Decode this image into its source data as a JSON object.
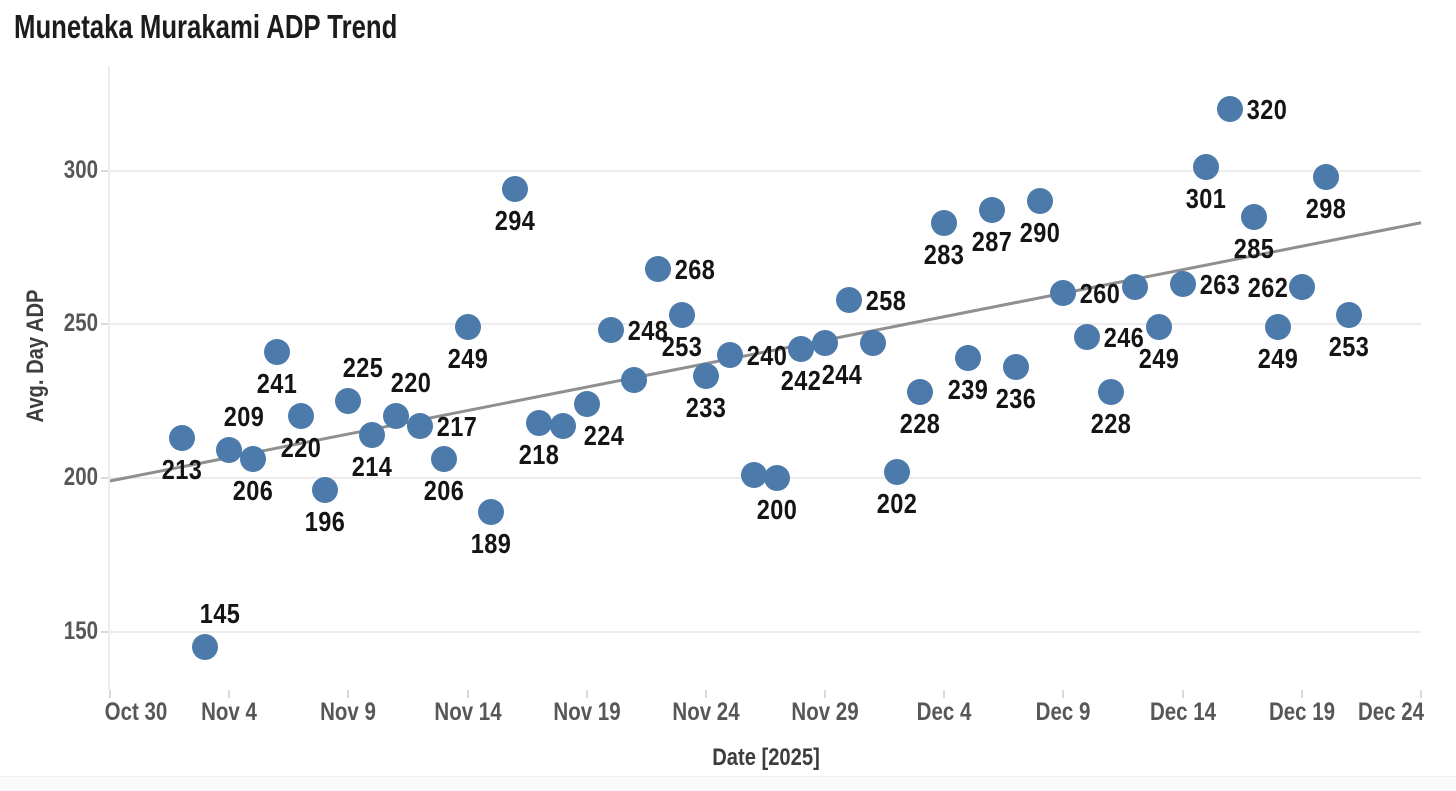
{
  "chart_data": {
    "type": "scatter",
    "title": "Munetaka Murakami ADP Trend",
    "xlabel": "Date [2025]",
    "ylabel": "Avg. Day ADP",
    "x_ticks": [
      "Oct 30",
      "Nov 4",
      "Nov 9",
      "Nov 14",
      "Nov 19",
      "Nov 24",
      "Nov 29",
      "Dec 4",
      "Dec 9",
      "Dec 14",
      "Dec 19",
      "Dec 24"
    ],
    "y_ticks": [
      150,
      200,
      250,
      300
    ],
    "ylim": [
      131,
      334
    ],
    "x_range_days": [
      "Oct 30",
      "Dec 24"
    ],
    "grid": "horizontal",
    "legend": "none",
    "point_color": "#4b7aab",
    "label_color": "#141414",
    "trend_line": {
      "start_value": 199,
      "end_value": 283,
      "color": "#8f8f8f"
    },
    "points": [
      {
        "date": "Nov 2",
        "value": 213,
        "label": "213",
        "label_pos": "b"
      },
      {
        "date": "Nov 3",
        "value": 145,
        "label": "145",
        "label_pos": "ar"
      },
      {
        "date": "Nov 4",
        "value": 209,
        "label": "209",
        "label_pos": "ar"
      },
      {
        "date": "Nov 5",
        "value": 206,
        "label": "206",
        "label_pos": "b"
      },
      {
        "date": "Nov 6",
        "value": 241,
        "label": "241",
        "label_pos": "b"
      },
      {
        "date": "Nov 7",
        "value": 220,
        "label": "220",
        "label_pos": "b"
      },
      {
        "date": "Nov 8",
        "value": 196,
        "label": "196",
        "label_pos": "b"
      },
      {
        "date": "Nov 9",
        "value": 225,
        "label": "225",
        "label_pos": "ar"
      },
      {
        "date": "Nov 10",
        "value": 214,
        "label": "214",
        "label_pos": "b"
      },
      {
        "date": "Nov 11",
        "value": 220,
        "label": "220",
        "label_pos": "ar"
      },
      {
        "date": "Nov 12",
        "value": 217,
        "label": "217",
        "label_pos": "r"
      },
      {
        "date": "Nov 13",
        "value": 206,
        "label": "206",
        "label_pos": "b"
      },
      {
        "date": "Nov 14",
        "value": 249,
        "label": "249",
        "label_pos": "b"
      },
      {
        "date": "Nov 15",
        "value": 189,
        "label": "189",
        "label_pos": "b"
      },
      {
        "date": "Nov 16",
        "value": 294,
        "label": "294",
        "label_pos": "b"
      },
      {
        "date": "Nov 17",
        "value": 218,
        "label": "218",
        "label_pos": "b"
      },
      {
        "date": "Nov 18",
        "value": 217,
        "label": "",
        "label_pos": "none"
      },
      {
        "date": "Nov 19",
        "value": 224,
        "label": "224",
        "label_pos": "br"
      },
      {
        "date": "Nov 20",
        "value": 248,
        "label": "248",
        "label_pos": "r"
      },
      {
        "date": "Nov 21",
        "value": 232,
        "label": "",
        "label_pos": "none"
      },
      {
        "date": "Nov 22",
        "value": 268,
        "label": "268",
        "label_pos": "r"
      },
      {
        "date": "Nov 23",
        "value": 253,
        "label": "253",
        "label_pos": "b"
      },
      {
        "date": "Nov 24",
        "value": 233,
        "label": "233",
        "label_pos": "b"
      },
      {
        "date": "Nov 25",
        "value": 240,
        "label": "240",
        "label_pos": "r"
      },
      {
        "date": "Nov 26",
        "value": 201,
        "label": "",
        "label_pos": "none"
      },
      {
        "date": "Nov 27",
        "value": 200,
        "label": "200",
        "label_pos": "b"
      },
      {
        "date": "Nov 28",
        "value": 242,
        "label": "242",
        "label_pos": "b"
      },
      {
        "date": "Nov 29",
        "value": 244,
        "label": "244",
        "label_pos": "br"
      },
      {
        "date": "Nov 30",
        "value": 258,
        "label": "258",
        "label_pos": "r"
      },
      {
        "date": "Dec 1",
        "value": 244,
        "label": "",
        "label_pos": "none"
      },
      {
        "date": "Dec 2",
        "value": 202,
        "label": "202",
        "label_pos": "b"
      },
      {
        "date": "Dec 3",
        "value": 228,
        "label": "228",
        "label_pos": "b"
      },
      {
        "date": "Dec 4",
        "value": 283,
        "label": "283",
        "label_pos": "b"
      },
      {
        "date": "Dec 5",
        "value": 239,
        "label": "239",
        "label_pos": "b"
      },
      {
        "date": "Dec 6",
        "value": 287,
        "label": "287",
        "label_pos": "b"
      },
      {
        "date": "Dec 7",
        "value": 236,
        "label": "236",
        "label_pos": "b"
      },
      {
        "date": "Dec 8",
        "value": 290,
        "label": "290",
        "label_pos": "b"
      },
      {
        "date": "Dec 9",
        "value": 260,
        "label": "260",
        "label_pos": "r"
      },
      {
        "date": "Dec 10",
        "value": 246,
        "label": "246",
        "label_pos": "r"
      },
      {
        "date": "Dec 11",
        "value": 228,
        "label": "228",
        "label_pos": "b"
      },
      {
        "date": "Dec 12",
        "value": 262,
        "label": "",
        "label_pos": "none"
      },
      {
        "date": "Dec 13",
        "value": 249,
        "label": "249",
        "label_pos": "b"
      },
      {
        "date": "Dec 14",
        "value": 263,
        "label": "263",
        "label_pos": "r"
      },
      {
        "date": "Dec 15",
        "value": 301,
        "label": "301",
        "label_pos": "b"
      },
      {
        "date": "Dec 16",
        "value": 320,
        "label": "320",
        "label_pos": "r"
      },
      {
        "date": "Dec 17",
        "value": 285,
        "label": "285",
        "label_pos": "b"
      },
      {
        "date": "Dec 18",
        "value": 249,
        "label": "249",
        "label_pos": "b"
      },
      {
        "date": "Dec 19",
        "value": 262,
        "label": "262",
        "label_pos": "l"
      },
      {
        "date": "Dec 20",
        "value": 298,
        "label": "298",
        "label_pos": "b"
      },
      {
        "date": "Dec 21",
        "value": 253,
        "label": "253",
        "label_pos": "b"
      }
    ]
  }
}
